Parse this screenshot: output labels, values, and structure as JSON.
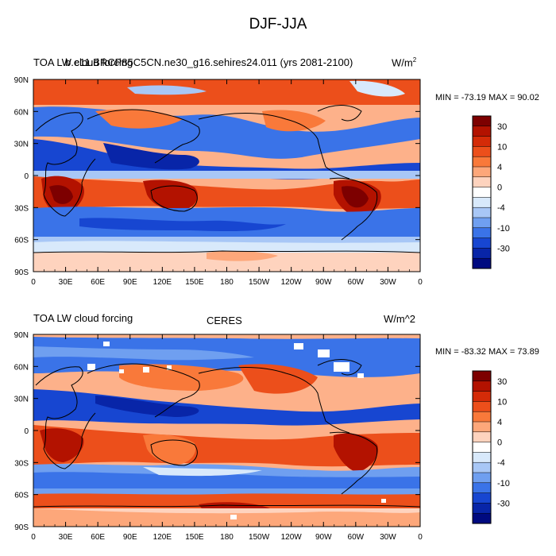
{
  "title": "DJF-JJA",
  "colorbar_colors": [
    "#7d0000",
    "#b31200",
    "#d42b08",
    "#ec4f1b",
    "#f9793a",
    "#fda77a",
    "#fed3be",
    "#ffffff",
    "#d8e9fb",
    "#a8c7f6",
    "#6f9ff0",
    "#3a73e8",
    "#1746d1",
    "#0825a8",
    "#000a80"
  ],
  "colorbar_ticks": [
    "30",
    "10",
    "4",
    "0",
    "-4",
    "-10",
    "-30"
  ],
  "x_ticks": [
    "0",
    "30E",
    "60E",
    "90E",
    "120E",
    "150E",
    "180",
    "150W",
    "120W",
    "90W",
    "60W",
    "30W",
    "0"
  ],
  "y_ticks": [
    "90N",
    "60N",
    "30N",
    "0",
    "30S",
    "60S",
    "90S"
  ],
  "panels": [
    {
      "left_title": "TOA LW cloud forcing",
      "center_title": "b.e11.BRCP85C5CN.ne30_g16.sehires24.011 (yrs 2081-2100)",
      "units": "W/m",
      "units_sup": "2",
      "min_max": "MIN = -73.19 MAX =  90.02"
    },
    {
      "left_title": "TOA LW cloud forcing",
      "center_title": "CERES",
      "units": "W/m^2",
      "units_sup": "",
      "min_max": "MIN = -83.32 MAX =  73.89"
    }
  ]
}
